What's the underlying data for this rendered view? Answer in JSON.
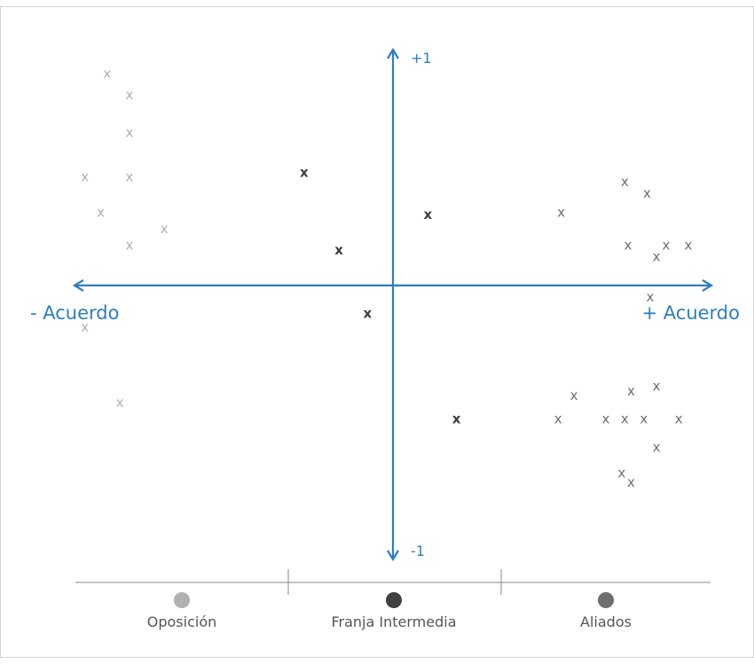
{
  "chart_data": {
    "type": "scatter",
    "xlim": [
      -1,
      1
    ],
    "ylim": [
      -1,
      1
    ],
    "grid": false,
    "legend_position": "bottom",
    "x_axis": {
      "left_label": "- Acuerdo",
      "right_label": "+ Acuerdo"
    },
    "y_axis": {
      "top_label": "+1",
      "bottom_label": "-1"
    },
    "marker": "x",
    "colors": {
      "axis": "#2f7dc0",
      "Oposición": "#b0b0b0",
      "Franja Intermedia": "#3f3f3f",
      "Aliados": "#6e6e6e",
      "legend_line": "#888888"
    },
    "series": [
      {
        "name": "Oposición",
        "points": [
          {
            "x": -0.9,
            "y": 0.9
          },
          {
            "x": -0.83,
            "y": 0.81
          },
          {
            "x": -0.83,
            "y": 0.65
          },
          {
            "x": -0.97,
            "y": 0.46
          },
          {
            "x": -0.83,
            "y": 0.46
          },
          {
            "x": -0.92,
            "y": 0.31
          },
          {
            "x": -0.72,
            "y": 0.24
          },
          {
            "x": -0.83,
            "y": 0.17
          },
          {
            "x": -0.97,
            "y": -0.18
          },
          {
            "x": -0.86,
            "y": -0.5
          }
        ]
      },
      {
        "name": "Franja Intermedia",
        "points": [
          {
            "x": -0.28,
            "y": 0.48
          },
          {
            "x": -0.17,
            "y": 0.15
          },
          {
            "x": 0.11,
            "y": 0.3
          },
          {
            "x": -0.08,
            "y": -0.12
          },
          {
            "x": 0.2,
            "y": -0.57
          }
        ]
      },
      {
        "name": "Aliados",
        "points": [
          {
            "x": 0.53,
            "y": 0.31
          },
          {
            "x": 0.73,
            "y": 0.44
          },
          {
            "x": 0.8,
            "y": 0.39
          },
          {
            "x": 0.74,
            "y": 0.17
          },
          {
            "x": 0.86,
            "y": 0.17
          },
          {
            "x": 0.93,
            "y": 0.17
          },
          {
            "x": 0.83,
            "y": 0.12
          },
          {
            "x": 0.81,
            "y": -0.05
          },
          {
            "x": 0.57,
            "y": -0.47
          },
          {
            "x": 0.52,
            "y": -0.57
          },
          {
            "x": 0.67,
            "y": -0.57
          },
          {
            "x": 0.73,
            "y": -0.57
          },
          {
            "x": 0.79,
            "y": -0.57
          },
          {
            "x": 0.9,
            "y": -0.57
          },
          {
            "x": 0.75,
            "y": -0.45
          },
          {
            "x": 0.83,
            "y": -0.43
          },
          {
            "x": 0.83,
            "y": -0.69
          },
          {
            "x": 0.72,
            "y": -0.8
          },
          {
            "x": 0.75,
            "y": -0.84
          }
        ]
      }
    ]
  }
}
